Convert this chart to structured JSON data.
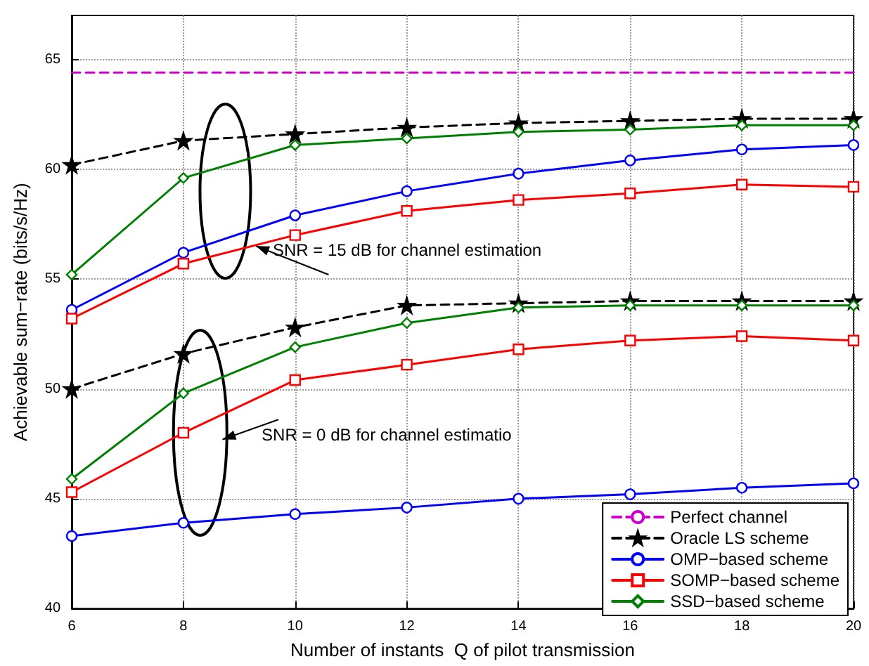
{
  "chart_data": {
    "type": "line",
    "xlabel": "Number of instants  Q of pilot transmission",
    "ylabel": "Achievable sum−rate (bits/s/Hz)",
    "x": [
      6,
      8,
      10,
      12,
      14,
      16,
      18,
      20
    ],
    "xlim": [
      6,
      20
    ],
    "xticks": [
      6,
      8,
      10,
      12,
      14,
      16,
      18,
      20
    ],
    "ylim": [
      40,
      67
    ],
    "yticks": [
      40,
      45,
      50,
      55,
      60,
      65
    ],
    "grid": true,
    "legend": "bottom right",
    "series": [
      {
        "name": "Perfect channel",
        "color": "#cc00cc",
        "marker": "none",
        "line_style": "dashed",
        "values": [
          64.4,
          64.4,
          64.4,
          64.4,
          64.4,
          64.4,
          64.4,
          64.4
        ]
      },
      {
        "name": "Oracle LS scheme",
        "color": "#000000",
        "marker": "star",
        "line_style": "dashed",
        "values": [
          60.2,
          61.3,
          61.6,
          61.9,
          62.1,
          62.2,
          62.3,
          62.3
        ]
      },
      {
        "name": "OMP−based scheme",
        "color": "#0000ff",
        "marker": "circle",
        "line_style": "solid",
        "values": [
          53.6,
          56.2,
          57.9,
          59.0,
          59.8,
          60.4,
          60.9,
          61.1
        ]
      },
      {
        "name": "SOMP−based scheme",
        "color": "#ff0000",
        "marker": "square",
        "line_style": "solid",
        "values": [
          53.2,
          55.7,
          57.0,
          58.1,
          58.6,
          58.9,
          59.3,
          59.2
        ]
      },
      {
        "name": "SSD−based scheme",
        "color": "#008000",
        "marker": "diamond",
        "line_style": "solid",
        "values": [
          55.2,
          59.6,
          61.1,
          61.4,
          61.7,
          61.8,
          62.0,
          62.0
        ]
      },
      {
        "color": "#000000",
        "marker": "star",
        "line_style": "dashed",
        "values": [
          50.0,
          51.6,
          52.8,
          53.8,
          53.9,
          54.0,
          54.0,
          54.0
        ]
      },
      {
        "color": "#0000ff",
        "marker": "circle",
        "line_style": "solid",
        "values": [
          43.3,
          43.9,
          44.3,
          44.6,
          45.0,
          45.2,
          45.5,
          45.7
        ]
      },
      {
        "color": "#ff0000",
        "marker": "square",
        "line_style": "solid",
        "values": [
          45.3,
          48.0,
          50.4,
          51.1,
          51.8,
          52.2,
          52.4,
          52.2
        ]
      },
      {
        "color": "#008000",
        "marker": "diamond",
        "line_style": "solid",
        "values": [
          45.9,
          49.8,
          51.9,
          53.0,
          53.7,
          53.8,
          53.8,
          53.8
        ]
      }
    ],
    "annotations": [
      "SNR = 15 dB for channel estimation",
      "SNR = 0 dB for channel estimatio"
    ]
  }
}
